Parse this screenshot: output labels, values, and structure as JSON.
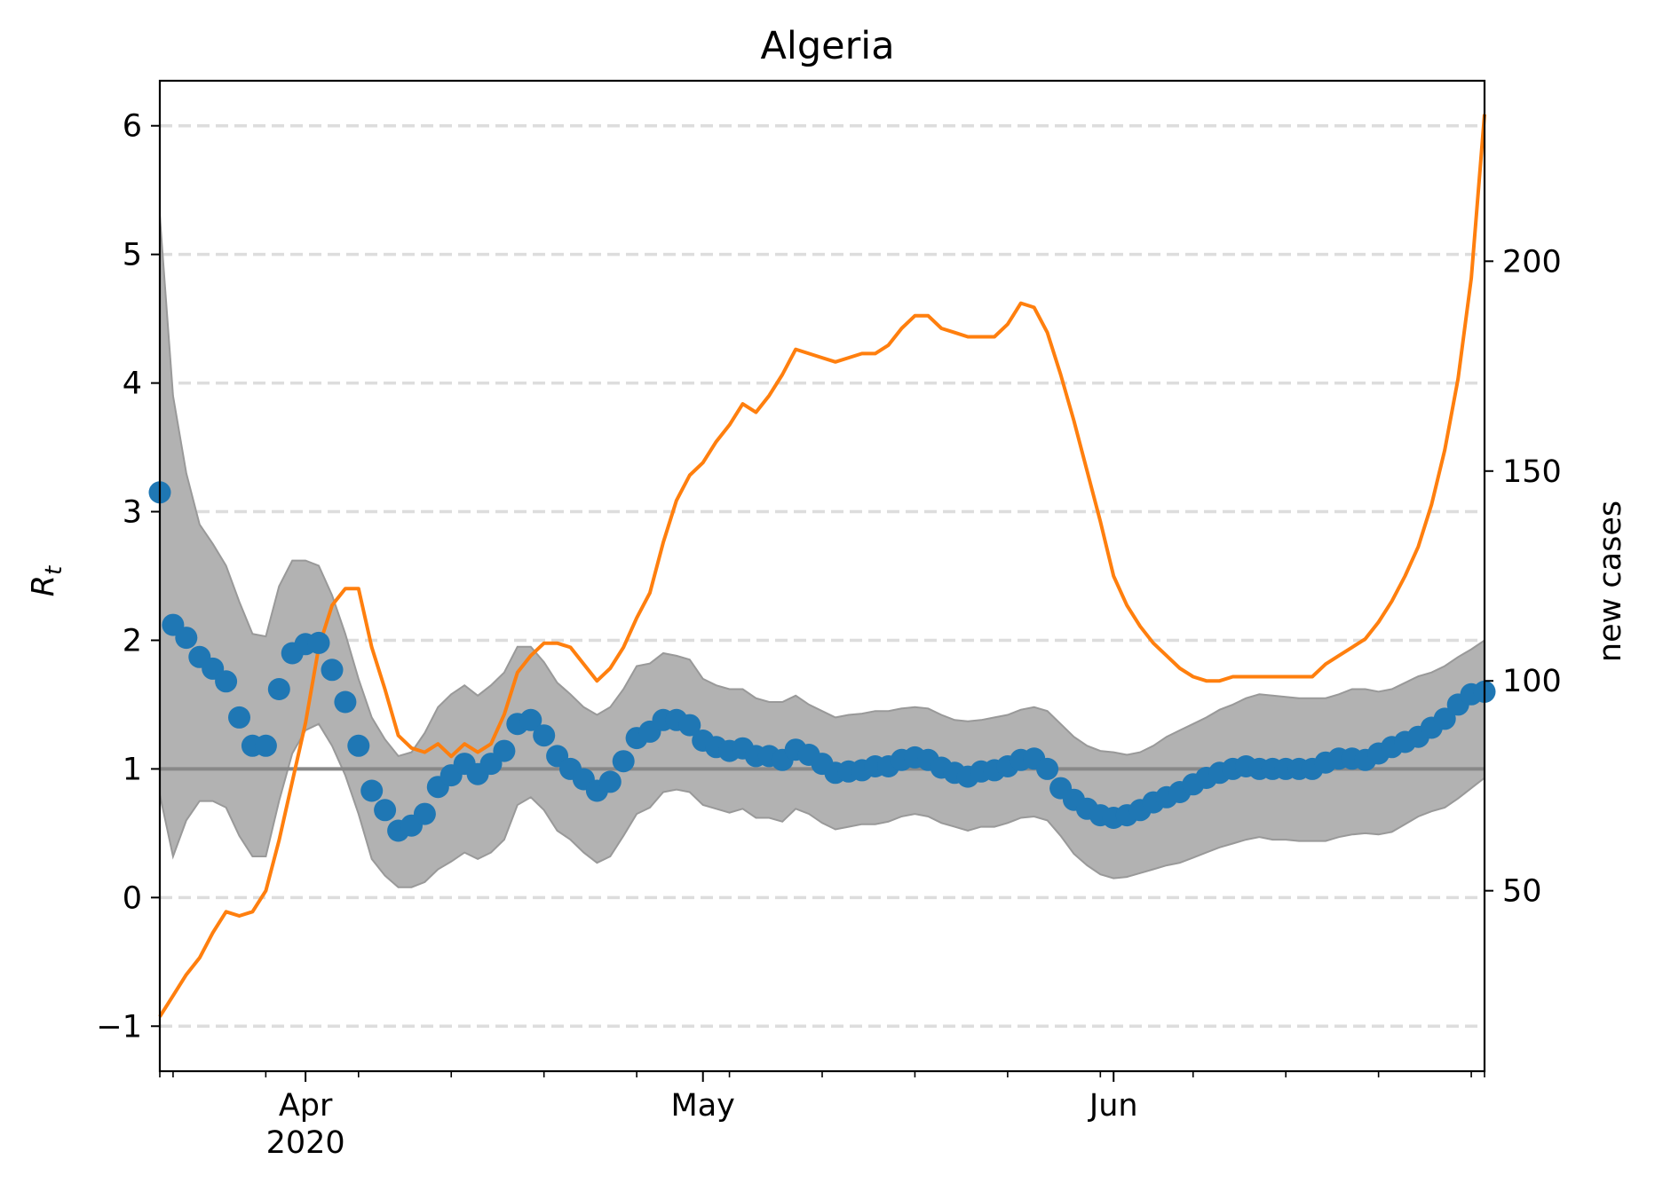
{
  "chart_data": {
    "type": "line",
    "title": "Algeria",
    "ylabel": "R",
    "ylabel_subscript": "t",
    "y2label": "new cases",
    "ylim": [
      -1.35,
      6.35
    ],
    "y2lim": [
      7,
      243
    ],
    "yticks": [
      -1,
      0,
      1,
      2,
      3,
      4,
      5,
      6
    ],
    "yticklabels": [
      "−1",
      "0",
      "1",
      "2",
      "3",
      "4",
      "5",
      "6"
    ],
    "y2ticks": [
      50,
      100,
      150,
      200
    ],
    "y2ticklabels": [
      "50",
      "100",
      "150",
      "200"
    ],
    "x_start": "2020-03-21",
    "x_end": "2020-06-29",
    "x_major_ticks": [
      {
        "date": "2020-04-01",
        "label": "Apr",
        "sublabel": "2020"
      },
      {
        "date": "2020-05-01",
        "label": "May",
        "sublabel": ""
      },
      {
        "date": "2020-06-01",
        "label": "Jun",
        "sublabel": ""
      }
    ],
    "x_minor_ticks": [
      "2020-03-21",
      "2020-03-22",
      "2020-03-29",
      "2020-04-05",
      "2020-04-12",
      "2020-04-19",
      "2020-04-26",
      "2020-05-03",
      "2020-05-10",
      "2020-05-17",
      "2020-05-24",
      "2020-05-31",
      "2020-06-07",
      "2020-06-14",
      "2020-06-21",
      "2020-06-28",
      "2020-06-29"
    ],
    "grid": "horizontal dashed",
    "reference_line": {
      "y": 1,
      "color": "#888888"
    },
    "colors": {
      "rt": "#1f77b4",
      "cases": "#ff7f0e",
      "band": "#b2b2b2",
      "band_edge": "#999999",
      "grid": "#dddddd"
    },
    "series": [
      {
        "kind": "scatter",
        "axis": "left",
        "values": [
          [
            "2020-03-21",
            3.15
          ],
          [
            "2020-03-22",
            2.12
          ],
          [
            "2020-03-23",
            2.02
          ],
          [
            "2020-03-24",
            1.87
          ],
          [
            "2020-03-25",
            1.78
          ],
          [
            "2020-03-26",
            1.68
          ],
          [
            "2020-03-27",
            1.4
          ],
          [
            "2020-03-28",
            1.18
          ],
          [
            "2020-03-29",
            1.18
          ],
          [
            "2020-03-30",
            1.62
          ],
          [
            "2020-03-31",
            1.9
          ],
          [
            "2020-04-01",
            1.97
          ],
          [
            "2020-04-02",
            1.98
          ],
          [
            "2020-04-03",
            1.77
          ],
          [
            "2020-04-04",
            1.52
          ],
          [
            "2020-04-05",
            1.18
          ],
          [
            "2020-04-06",
            0.83
          ],
          [
            "2020-04-07",
            0.68
          ],
          [
            "2020-04-08",
            0.52
          ],
          [
            "2020-04-09",
            0.56
          ],
          [
            "2020-04-10",
            0.65
          ],
          [
            "2020-04-11",
            0.86
          ],
          [
            "2020-04-12",
            0.95
          ],
          [
            "2020-04-13",
            1.04
          ],
          [
            "2020-04-14",
            0.96
          ],
          [
            "2020-04-15",
            1.04
          ],
          [
            "2020-04-16",
            1.14
          ],
          [
            "2020-04-17",
            1.35
          ],
          [
            "2020-04-18",
            1.38
          ],
          [
            "2020-04-19",
            1.26
          ],
          [
            "2020-04-20",
            1.1
          ],
          [
            "2020-04-21",
            1.0
          ],
          [
            "2020-04-22",
            0.92
          ],
          [
            "2020-04-23",
            0.83
          ],
          [
            "2020-04-24",
            0.9
          ],
          [
            "2020-04-25",
            1.06
          ],
          [
            "2020-04-26",
            1.24
          ],
          [
            "2020-04-27",
            1.29
          ],
          [
            "2020-04-28",
            1.38
          ],
          [
            "2020-04-29",
            1.38
          ],
          [
            "2020-04-30",
            1.34
          ],
          [
            "2020-05-01",
            1.22
          ],
          [
            "2020-05-02",
            1.17
          ],
          [
            "2020-05-03",
            1.14
          ],
          [
            "2020-05-04",
            1.16
          ],
          [
            "2020-05-05",
            1.1
          ],
          [
            "2020-05-06",
            1.1
          ],
          [
            "2020-05-07",
            1.07
          ],
          [
            "2020-05-08",
            1.15
          ],
          [
            "2020-05-09",
            1.11
          ],
          [
            "2020-05-10",
            1.04
          ],
          [
            "2020-05-11",
            0.97
          ],
          [
            "2020-05-12",
            0.98
          ],
          [
            "2020-05-13",
            0.99
          ],
          [
            "2020-05-14",
            1.02
          ],
          [
            "2020-05-15",
            1.02
          ],
          [
            "2020-05-16",
            1.07
          ],
          [
            "2020-05-17",
            1.09
          ],
          [
            "2020-05-18",
            1.07
          ],
          [
            "2020-05-19",
            1.01
          ],
          [
            "2020-05-20",
            0.97
          ],
          [
            "2020-05-21",
            0.94
          ],
          [
            "2020-05-22",
            0.98
          ],
          [
            "2020-05-23",
            0.99
          ],
          [
            "2020-05-24",
            1.02
          ],
          [
            "2020-05-25",
            1.07
          ],
          [
            "2020-05-26",
            1.08
          ],
          [
            "2020-05-27",
            1.0
          ],
          [
            "2020-05-28",
            0.85
          ],
          [
            "2020-05-29",
            0.76
          ],
          [
            "2020-05-30",
            0.69
          ],
          [
            "2020-05-31",
            0.64
          ],
          [
            "2020-06-01",
            0.62
          ],
          [
            "2020-06-02",
            0.64
          ],
          [
            "2020-06-03",
            0.68
          ],
          [
            "2020-06-04",
            0.74
          ],
          [
            "2020-06-05",
            0.78
          ],
          [
            "2020-06-06",
            0.82
          ],
          [
            "2020-06-07",
            0.88
          ],
          [
            "2020-06-08",
            0.93
          ],
          [
            "2020-06-09",
            0.97
          ],
          [
            "2020-06-10",
            1.0
          ],
          [
            "2020-06-11",
            1.02
          ],
          [
            "2020-06-12",
            1.0
          ],
          [
            "2020-06-13",
            1.0
          ],
          [
            "2020-06-14",
            1.0
          ],
          [
            "2020-06-15",
            1.0
          ],
          [
            "2020-06-16",
            1.0
          ],
          [
            "2020-06-17",
            1.05
          ],
          [
            "2020-06-18",
            1.08
          ],
          [
            "2020-06-19",
            1.08
          ],
          [
            "2020-06-20",
            1.07
          ],
          [
            "2020-06-21",
            1.12
          ],
          [
            "2020-06-22",
            1.17
          ],
          [
            "2020-06-23",
            1.21
          ],
          [
            "2020-06-24",
            1.25
          ],
          [
            "2020-06-25",
            1.32
          ],
          [
            "2020-06-26",
            1.39
          ],
          [
            "2020-06-27",
            1.5
          ],
          [
            "2020-06-28",
            1.58
          ],
          [
            "2020-06-29",
            1.6
          ]
        ]
      },
      {
        "kind": "band",
        "axis": "left",
        "upper": [
          5.3,
          3.9,
          3.3,
          2.9,
          2.75,
          2.58,
          2.3,
          2.05,
          2.03,
          2.42,
          2.62,
          2.62,
          2.58,
          2.35,
          2.05,
          1.7,
          1.4,
          1.23,
          1.1,
          1.13,
          1.28,
          1.48,
          1.58,
          1.65,
          1.57,
          1.65,
          1.75,
          1.95,
          1.95,
          1.83,
          1.67,
          1.58,
          1.48,
          1.42,
          1.48,
          1.62,
          1.8,
          1.82,
          1.9,
          1.88,
          1.85,
          1.7,
          1.65,
          1.62,
          1.62,
          1.55,
          1.52,
          1.52,
          1.57,
          1.5,
          1.45,
          1.4,
          1.42,
          1.43,
          1.45,
          1.45,
          1.47,
          1.48,
          1.47,
          1.42,
          1.38,
          1.37,
          1.38,
          1.4,
          1.42,
          1.46,
          1.48,
          1.45,
          1.35,
          1.25,
          1.18,
          1.14,
          1.13,
          1.11,
          1.13,
          1.18,
          1.25,
          1.3,
          1.35,
          1.4,
          1.46,
          1.5,
          1.55,
          1.58,
          1.57,
          1.56,
          1.55,
          1.55,
          1.55,
          1.58,
          1.62,
          1.62,
          1.6,
          1.62,
          1.67,
          1.72,
          1.75,
          1.8,
          1.87,
          1.93,
          2.0,
          2.03,
          2.03
        ],
        "lower": [
          0.8,
          0.32,
          0.6,
          0.75,
          0.75,
          0.7,
          0.48,
          0.32,
          0.32,
          0.75,
          1.12,
          1.3,
          1.35,
          1.18,
          0.95,
          0.65,
          0.3,
          0.17,
          0.08,
          0.08,
          0.12,
          0.22,
          0.28,
          0.35,
          0.3,
          0.35,
          0.45,
          0.72,
          0.78,
          0.68,
          0.52,
          0.45,
          0.35,
          0.27,
          0.32,
          0.48,
          0.65,
          0.7,
          0.82,
          0.84,
          0.82,
          0.72,
          0.69,
          0.66,
          0.69,
          0.62,
          0.62,
          0.59,
          0.69,
          0.65,
          0.58,
          0.53,
          0.55,
          0.57,
          0.57,
          0.59,
          0.63,
          0.65,
          0.63,
          0.58,
          0.55,
          0.52,
          0.55,
          0.55,
          0.58,
          0.62,
          0.63,
          0.6,
          0.48,
          0.34,
          0.25,
          0.18,
          0.15,
          0.16,
          0.19,
          0.22,
          0.25,
          0.27,
          0.31,
          0.35,
          0.39,
          0.42,
          0.45,
          0.47,
          0.45,
          0.45,
          0.44,
          0.44,
          0.44,
          0.47,
          0.49,
          0.5,
          0.49,
          0.51,
          0.57,
          0.63,
          0.67,
          0.7,
          0.77,
          0.85,
          0.93,
          1.1,
          1.17
        ]
      },
      {
        "kind": "line",
        "axis": "right",
        "values": [
          [
            "2020-03-21",
            20
          ],
          [
            "2020-03-22",
            25
          ],
          [
            "2020-03-23",
            30
          ],
          [
            "2020-03-24",
            34
          ],
          [
            "2020-03-25",
            40
          ],
          [
            "2020-03-26",
            45
          ],
          [
            "2020-03-27",
            44
          ],
          [
            "2020-03-28",
            45
          ],
          [
            "2020-03-29",
            50
          ],
          [
            "2020-03-30",
            62
          ],
          [
            "2020-03-31",
            76
          ],
          [
            "2020-04-01",
            90
          ],
          [
            "2020-04-02",
            108
          ],
          [
            "2020-04-03",
            118
          ],
          [
            "2020-04-04",
            122
          ],
          [
            "2020-04-05",
            122
          ],
          [
            "2020-04-06",
            108
          ],
          [
            "2020-04-07",
            98
          ],
          [
            "2020-04-08",
            87
          ],
          [
            "2020-04-09",
            84
          ],
          [
            "2020-04-10",
            83
          ],
          [
            "2020-04-11",
            85
          ],
          [
            "2020-04-12",
            82
          ],
          [
            "2020-04-13",
            85
          ],
          [
            "2020-04-14",
            83
          ],
          [
            "2020-04-15",
            85
          ],
          [
            "2020-04-16",
            92
          ],
          [
            "2020-04-17",
            102
          ],
          [
            "2020-04-18",
            106
          ],
          [
            "2020-04-19",
            109
          ],
          [
            "2020-04-20",
            109
          ],
          [
            "2020-04-21",
            108
          ],
          [
            "2020-04-22",
            104
          ],
          [
            "2020-04-23",
            100
          ],
          [
            "2020-04-24",
            103
          ],
          [
            "2020-04-25",
            108
          ],
          [
            "2020-04-26",
            115
          ],
          [
            "2020-04-27",
            121
          ],
          [
            "2020-04-28",
            133
          ],
          [
            "2020-04-29",
            143
          ],
          [
            "2020-04-30",
            149
          ],
          [
            "2020-05-01",
            152
          ],
          [
            "2020-05-02",
            157
          ],
          [
            "2020-05-03",
            161
          ],
          [
            "2020-05-04",
            166
          ],
          [
            "2020-05-05",
            164
          ],
          [
            "2020-05-06",
            168
          ],
          [
            "2020-05-07",
            173
          ],
          [
            "2020-05-08",
            179
          ],
          [
            "2020-05-09",
            178
          ],
          [
            "2020-05-10",
            177
          ],
          [
            "2020-05-11",
            176
          ],
          [
            "2020-05-12",
            177
          ],
          [
            "2020-05-13",
            178
          ],
          [
            "2020-05-14",
            178
          ],
          [
            "2020-05-15",
            180
          ],
          [
            "2020-05-16",
            184
          ],
          [
            "2020-05-17",
            187
          ],
          [
            "2020-05-18",
            187
          ],
          [
            "2020-05-19",
            184
          ],
          [
            "2020-05-20",
            183
          ],
          [
            "2020-05-21",
            182
          ],
          [
            "2020-05-22",
            182
          ],
          [
            "2020-05-23",
            182
          ],
          [
            "2020-05-24",
            185
          ],
          [
            "2020-05-25",
            190
          ],
          [
            "2020-05-26",
            189
          ],
          [
            "2020-05-27",
            183
          ],
          [
            "2020-05-28",
            173
          ],
          [
            "2020-05-29",
            162
          ],
          [
            "2020-05-30",
            150
          ],
          [
            "2020-05-31",
            138
          ],
          [
            "2020-06-01",
            125
          ],
          [
            "2020-06-02",
            118
          ],
          [
            "2020-06-03",
            113
          ],
          [
            "2020-06-04",
            109
          ],
          [
            "2020-06-05",
            106
          ],
          [
            "2020-06-06",
            103
          ],
          [
            "2020-06-07",
            101
          ],
          [
            "2020-06-08",
            100
          ],
          [
            "2020-06-09",
            100
          ],
          [
            "2020-06-10",
            101
          ],
          [
            "2020-06-11",
            101
          ],
          [
            "2020-06-12",
            101
          ],
          [
            "2020-06-13",
            101
          ],
          [
            "2020-06-14",
            101
          ],
          [
            "2020-06-15",
            101
          ],
          [
            "2020-06-16",
            101
          ],
          [
            "2020-06-17",
            104
          ],
          [
            "2020-06-18",
            106
          ],
          [
            "2020-06-19",
            108
          ],
          [
            "2020-06-20",
            110
          ],
          [
            "2020-06-21",
            114
          ],
          [
            "2020-06-22",
            119
          ],
          [
            "2020-06-23",
            125
          ],
          [
            "2020-06-24",
            132
          ],
          [
            "2020-06-25",
            142
          ],
          [
            "2020-06-26",
            155
          ],
          [
            "2020-06-27",
            172
          ],
          [
            "2020-06-28",
            196
          ],
          [
            "2020-06-29",
            235
          ]
        ]
      }
    ]
  }
}
